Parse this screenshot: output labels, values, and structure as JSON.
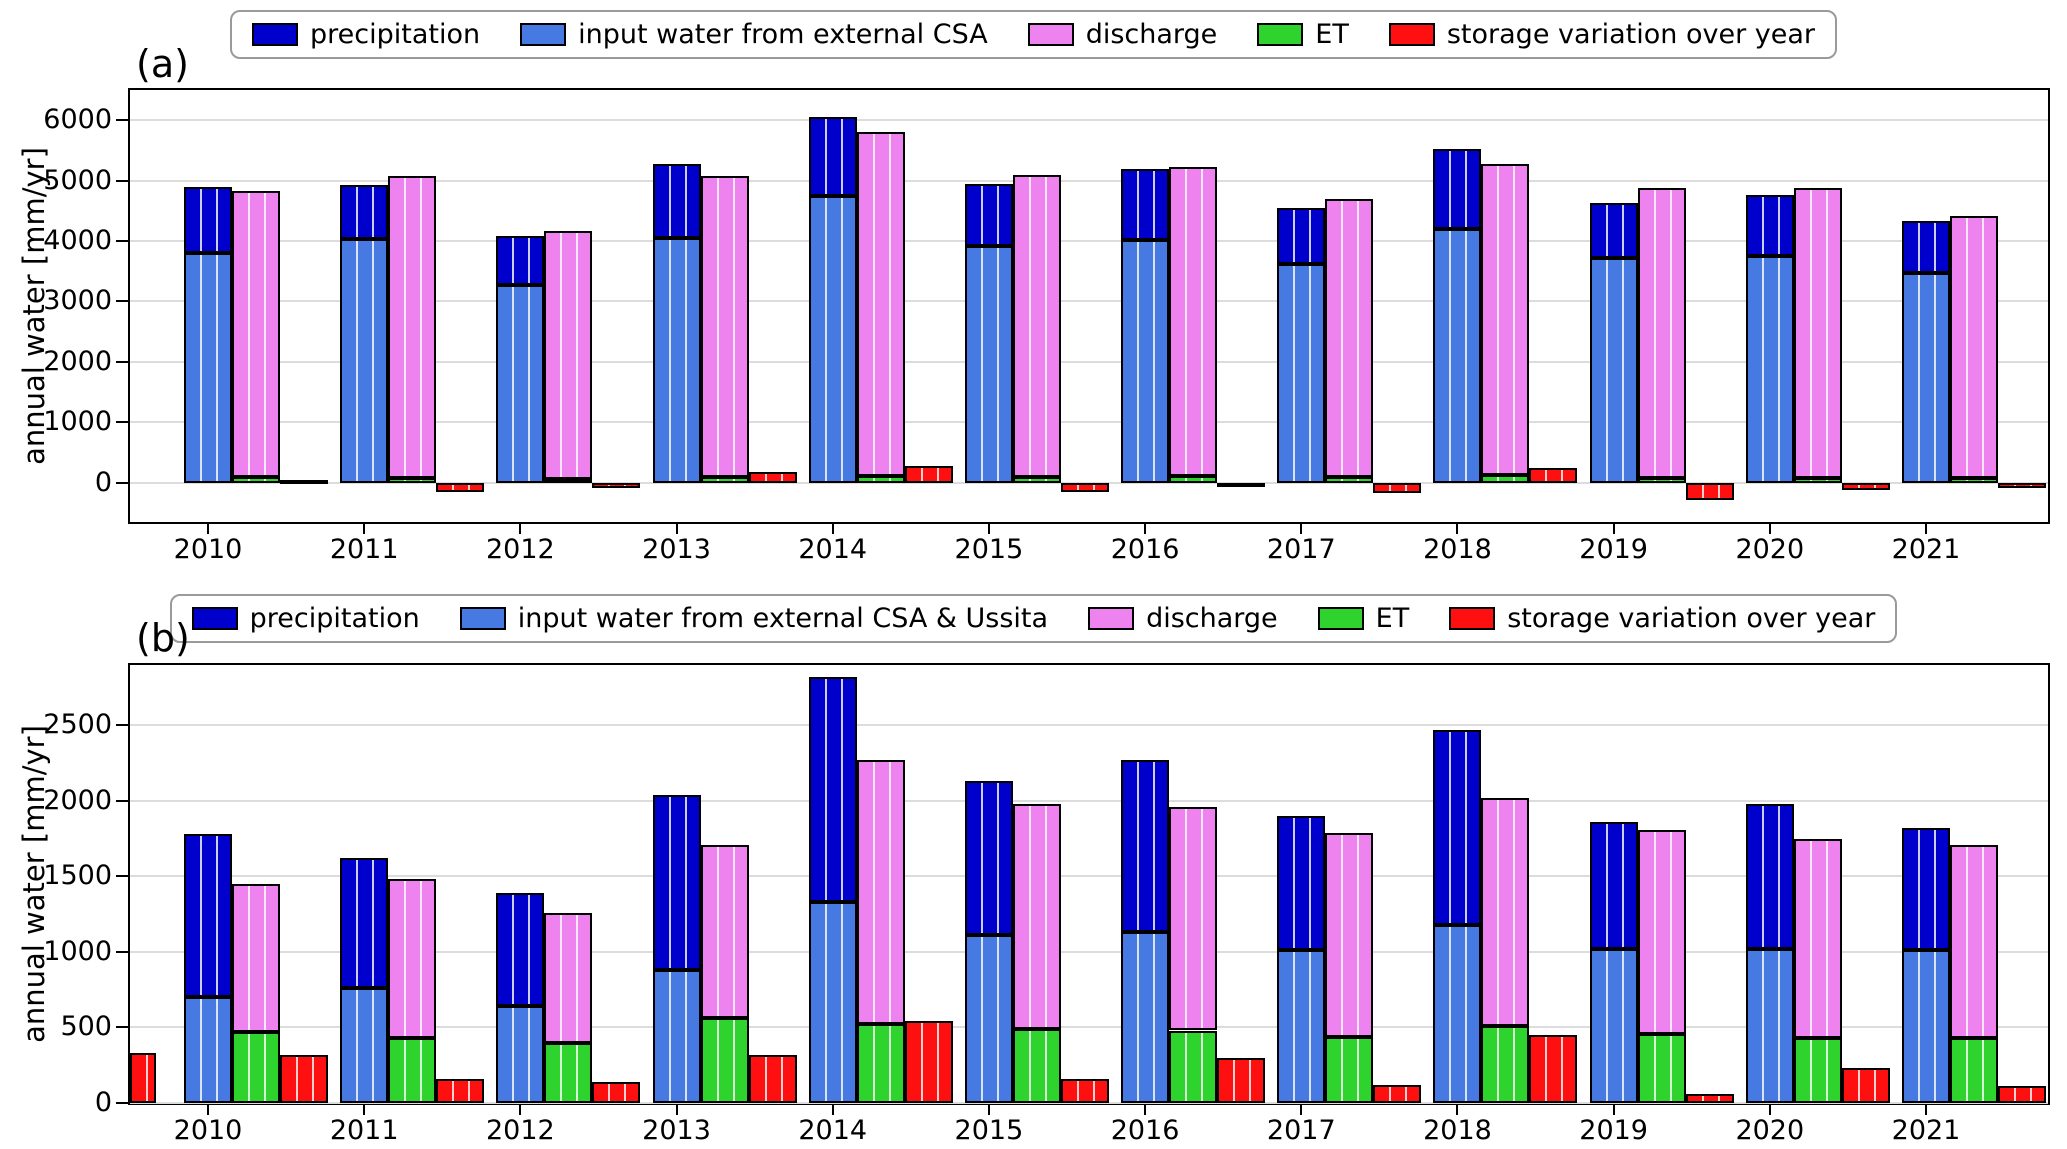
{
  "figure": {
    "background": "#ffffff"
  },
  "colors": {
    "precipitation": "#0000cd",
    "input_water": "#4779e3",
    "discharge": "#ee82ee",
    "et": "#2ed32e",
    "storage": "#ff1010",
    "grid": "#dcdcdc",
    "frame": "#000000"
  },
  "chart_data": [
    {
      "type": "bar",
      "panel_label": "(a)",
      "title": "",
      "xlabel": "",
      "ylabel": "annual water [mm/yr]",
      "ylim": [
        -650,
        6500
      ],
      "yticks": [
        0,
        1000,
        2000,
        3000,
        4000,
        5000,
        6000
      ],
      "grid": true,
      "legend_position": "top-center",
      "categories": [
        "2010",
        "2011",
        "2012",
        "2013",
        "2014",
        "2015",
        "2016",
        "2017",
        "2018",
        "2019",
        "2020",
        "2021"
      ],
      "legend": [
        {
          "label": "precipitation",
          "color": "#0000cd"
        },
        {
          "label": "input water from external CSA",
          "color": "#4779e3"
        },
        {
          "label": "discharge",
          "color": "#ee82ee"
        },
        {
          "label": "ET",
          "color": "#2ed32e"
        },
        {
          "label": "storage variation over year",
          "color": "#ff1010"
        }
      ],
      "groups": [
        {
          "name": "precipitation-stack",
          "segments": [
            {
              "name": "input water from external CSA",
              "color": "#4779e3",
              "values": [
                3800,
                4030,
                3270,
                4050,
                4750,
                3920,
                4020,
                3620,
                4200,
                3720,
                3760,
                3470
              ]
            },
            {
              "name": "precipitation",
              "color": "#0000cd",
              "values": [
                1100,
                900,
                810,
                1220,
                1310,
                1030,
                1180,
                930,
                1320,
                910,
                1010,
                860
              ]
            }
          ],
          "stack_totals": [
            4900,
            4930,
            4080,
            5270,
            6060,
            4950,
            5200,
            4550,
            5520,
            4630,
            4770,
            4330
          ]
        },
        {
          "name": "discharge-stack",
          "segments": [
            {
              "name": "ET",
              "color": "#2ed32e",
              "values": [
                90,
                80,
                60,
                100,
                110,
                100,
                110,
                90,
                130,
                80,
                70,
                70
              ]
            },
            {
              "name": "discharge",
              "color": "#ee82ee",
              "values": [
                4740,
                5000,
                4110,
                4980,
                5690,
                5000,
                5120,
                4610,
                5140,
                4790,
                4810,
                4350
              ]
            }
          ],
          "stack_totals": [
            4830,
            5080,
            4170,
            5080,
            5800,
            5100,
            5230,
            4700,
            5270,
            4870,
            4880,
            4420
          ]
        },
        {
          "name": "storage-bar",
          "segments": [
            {
              "name": "storage variation over year",
              "color": "#ff1010",
              "values": [
                50,
                -150,
                -80,
                180,
                270,
                -150,
                -60,
                -170,
                240,
                -280,
                -120,
                -90
              ]
            }
          ]
        }
      ]
    },
    {
      "type": "bar",
      "panel_label": "(b)",
      "title": "",
      "xlabel": "",
      "ylabel": "annual water [mm/yr]",
      "ylim": [
        0,
        2900
      ],
      "yticks": [
        0,
        500,
        1000,
        1500,
        2000,
        2500
      ],
      "grid": true,
      "legend_position": "top-center",
      "categories": [
        "2010",
        "2011",
        "2012",
        "2013",
        "2014",
        "2015",
        "2016",
        "2017",
        "2018",
        "2019",
        "2020",
        "2021"
      ],
      "legend": [
        {
          "label": "precipitation",
          "color": "#0000cd"
        },
        {
          "label": "input water from external CSA & Ussita",
          "color": "#4779e3"
        },
        {
          "label": "discharge",
          "color": "#ee82ee"
        },
        {
          "label": "ET",
          "color": "#2ed32e"
        },
        {
          "label": "storage variation over year",
          "color": "#ff1010"
        }
      ],
      "clipped_left_bar": {
        "name": "storage variation over year",
        "color": "#ff1010",
        "value": 330
      },
      "groups": [
        {
          "name": "precipitation-stack",
          "segments": [
            {
              "name": "input water from external CSA & Ussita",
              "color": "#4779e3",
              "values": [
                700,
                760,
                640,
                880,
                1330,
                1110,
                1130,
                1010,
                1180,
                1020,
                1020,
                1010
              ]
            },
            {
              "name": "precipitation",
              "color": "#0000cd",
              "values": [
                1080,
                860,
                750,
                1160,
                1490,
                1020,
                1140,
                890,
                1290,
                840,
                960,
                810
              ]
            }
          ],
          "stack_totals": [
            1780,
            1620,
            1390,
            2040,
            2820,
            2130,
            2270,
            1900,
            2470,
            1860,
            1980,
            1820
          ]
        },
        {
          "name": "discharge-stack",
          "segments": [
            {
              "name": "ET",
              "color": "#2ed32e",
              "values": [
                470,
                430,
                400,
                560,
                520,
                490,
                480,
                440,
                510,
                460,
                430,
                430
              ]
            },
            {
              "name": "discharge",
              "color": "#ee82ee",
              "values": [
                980,
                1050,
                860,
                1150,
                1750,
                1490,
                1480,
                1350,
                1510,
                1350,
                1320,
                1280
              ]
            }
          ],
          "stack_totals": [
            1450,
            1480,
            1260,
            1710,
            2270,
            1980,
            1960,
            1790,
            2020,
            1810,
            1750,
            1710
          ]
        },
        {
          "name": "storage-bar",
          "segments": [
            {
              "name": "storage variation over year",
              "color": "#ff1010",
              "values": [
                320,
                160,
                140,
                320,
                540,
                160,
                300,
                120,
                450,
                60,
                230,
                110
              ]
            }
          ]
        }
      ]
    }
  ]
}
